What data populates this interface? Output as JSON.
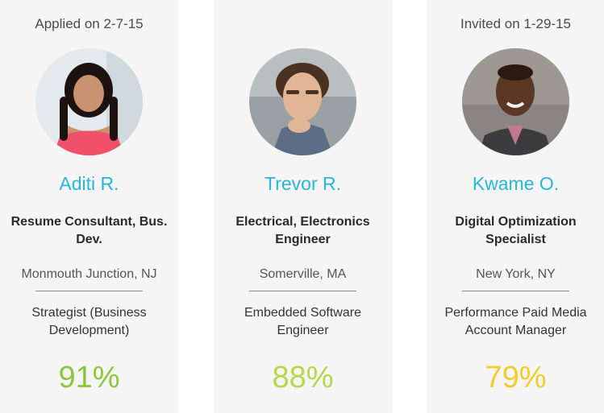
{
  "candidates": [
    {
      "status": "Applied on 2-7-15",
      "name": "Aditi R.",
      "title": "Resume Consultant, Bus. Dev.",
      "location": "Monmouth Junction, NJ",
      "role": "Strategist (Business Development)",
      "match": "91%",
      "match_color": "#8cc63f",
      "avatar_icon": "profile-photo-aditi"
    },
    {
      "status": "",
      "name": "Trevor R.",
      "title": "Electrical, Electronics Engineer",
      "location": "Somerville, MA",
      "role": "Embedded Software Engineer",
      "match": "88%",
      "match_color": "#b4d84a",
      "avatar_icon": "profile-photo-trevor"
    },
    {
      "status": "Invited on 1-29-15",
      "name": "Kwame O.",
      "title": "Digital Optimization Specialist",
      "location": "New York, NY",
      "role": "Performance Paid Media Account Manager",
      "match": "79%",
      "match_color": "#f0cd2a",
      "avatar_icon": "profile-photo-kwame"
    }
  ],
  "accent_color": "#29b6d9"
}
